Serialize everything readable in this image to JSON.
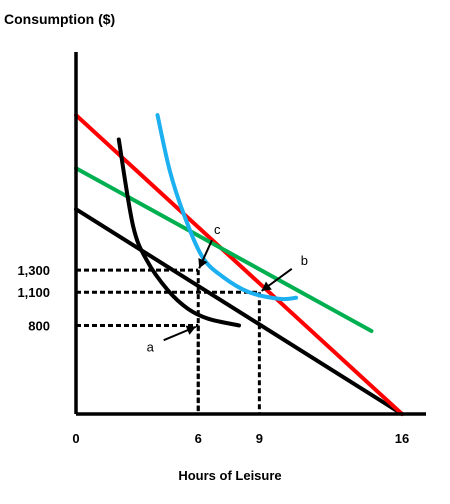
{
  "chart_data": {
    "type": "line",
    "ylabel": "Consumption ($)",
    "xlabel": "Hours of Leisure",
    "x_ticks": [
      0,
      6,
      9,
      16
    ],
    "y_ticks": [
      {
        "value": 800,
        "label": "800"
      },
      {
        "value": 1100,
        "label": "1,100"
      },
      {
        "value": 1300,
        "label": "1,300"
      }
    ],
    "xlim": [
      0,
      16
    ],
    "ylim": [
      0,
      3100
    ],
    "grid": false,
    "series": [
      {
        "type": "budget_line",
        "color": "#000000",
        "points": [
          [
            0,
            1850
          ],
          [
            16,
            0
          ]
        ]
      },
      {
        "type": "budget_line",
        "color": "#ff0000",
        "points": [
          [
            0,
            2700
          ],
          [
            16,
            0
          ]
        ]
      },
      {
        "type": "budget_line",
        "color": "#00b050",
        "points": [
          [
            0,
            2220
          ],
          [
            14.5,
            750
          ]
        ]
      },
      {
        "type": "indifference_curve",
        "color": "#000000",
        "points": [
          [
            2.1,
            2480
          ],
          [
            2.8,
            1700
          ],
          [
            3.5,
            1380
          ],
          [
            4.5,
            1120
          ],
          [
            5.5,
            950
          ],
          [
            6.5,
            860
          ],
          [
            8.0,
            800
          ]
        ]
      },
      {
        "type": "indifference_curve",
        "color": "#1cb0f0",
        "points": [
          [
            4.0,
            2700
          ],
          [
            4.6,
            2200
          ],
          [
            5.3,
            1800
          ],
          [
            6.2,
            1420
          ],
          [
            7.2,
            1240
          ],
          [
            8.5,
            1100
          ],
          [
            10.0,
            1040
          ],
          [
            10.8,
            1050
          ]
        ]
      }
    ],
    "reference_lines": [
      {
        "x": 6,
        "y": 1300
      },
      {
        "x": 9,
        "y": 1100
      },
      {
        "x": 6,
        "y": 800
      }
    ],
    "annotations": [
      {
        "text": "a",
        "x": 6,
        "y": 800
      },
      {
        "text": "b",
        "x": 9,
        "y": 1100
      },
      {
        "text": "c",
        "x": 6,
        "y": 1300
      }
    ]
  }
}
